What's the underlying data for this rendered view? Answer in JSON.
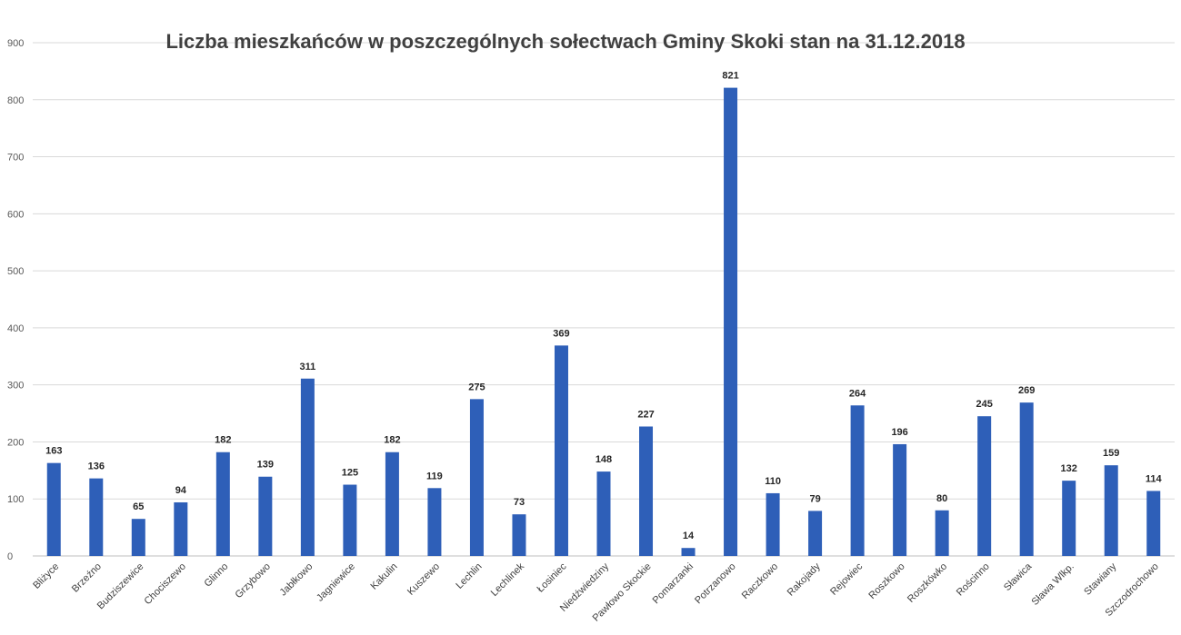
{
  "chart_data": {
    "type": "bar",
    "title": "Liczba mieszkańców w poszczególnych sołectwach Gminy Skoki stan na 31.12.2018",
    "xlabel": "",
    "ylabel": "",
    "ylim": [
      0,
      900
    ],
    "yticks": [
      0,
      100,
      200,
      300,
      400,
      500,
      600,
      700,
      800,
      900
    ],
    "grid": true,
    "legend": "none",
    "bar_color": "#2e5fb8",
    "categories": [
      "Bliżyce",
      "Brzeźno",
      "Budziszewice",
      "Chociszewo",
      "Glinno",
      "Grzybowo",
      "Jabłkowo",
      "Jagniewice",
      "Kakulin",
      "Kuszewo",
      "Lechlin",
      "Lechlinek",
      "Łosiniec",
      "Niedźwiedziny",
      "Pawłowo Skockie",
      "Pomarzanki",
      "Potrzanowo",
      "Raczkowo",
      "Rakojady",
      "Rejowiec",
      "Roszkowo",
      "Roszkówko",
      "Rościnno",
      "Sławica",
      "Sława Wlkp.",
      "Stawiany",
      "Szczodrochowo"
    ],
    "values": [
      163,
      136,
      65,
      94,
      182,
      139,
      311,
      125,
      182,
      119,
      275,
      73,
      369,
      148,
      227,
      14,
      821,
      110,
      79,
      264,
      196,
      80,
      245,
      269,
      132,
      159,
      114
    ]
  }
}
